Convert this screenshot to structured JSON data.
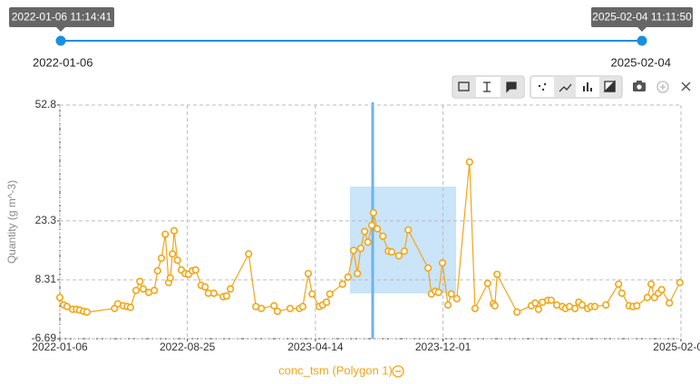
{
  "slider": {
    "start_label": "2022-01-06 11:14:41",
    "end_label": "2025-02-04 11:11:50",
    "start_date": "2022-01-06",
    "end_date": "2025-02-04"
  },
  "chart_data": {
    "type": "line",
    "y_label": "Quantity (g m^-3)",
    "x": [
      "2022-01-06",
      "2022-01-13",
      "2022-01-19",
      "2022-01-29",
      "2022-02-05",
      "2022-02-11",
      "2022-02-18",
      "2022-02-24",
      "2022-04-15",
      "2022-04-21",
      "2022-05-01",
      "2022-05-08",
      "2022-05-14",
      "2022-05-24",
      "2022-05-31",
      "2022-06-06",
      "2022-06-16",
      "2022-06-26",
      "2022-07-02",
      "2022-07-09",
      "2022-07-16",
      "2022-07-22",
      "2022-07-25",
      "2022-07-29",
      "2022-08-01",
      "2022-08-07",
      "2022-08-14",
      "2022-08-21",
      "2022-08-27",
      "2022-09-03",
      "2022-09-09",
      "2022-09-19",
      "2022-09-26",
      "2022-10-02",
      "2022-10-12",
      "2022-10-29",
      "2022-11-04",
      "2022-11-11",
      "2022-12-14",
      "2022-12-27",
      "2023-01-06",
      "2023-01-29",
      "2023-02-04",
      "2023-02-27",
      "2023-03-16",
      "2023-03-22",
      "2023-04-01",
      "2023-04-08",
      "2023-04-21",
      "2023-04-27",
      "2023-05-04",
      "2023-05-10",
      "2023-06-02",
      "2023-06-12",
      "2023-06-22",
      "2023-06-29",
      "2023-07-05",
      "2023-07-12",
      "2023-07-18",
      "2023-07-25",
      "2023-07-28",
      "2023-08-04",
      "2023-08-14",
      "2023-08-24",
      "2023-08-30",
      "2023-09-12",
      "2023-09-22",
      "2023-09-29",
      "2023-11-04",
      "2023-11-10",
      "2023-11-17",
      "2023-11-23",
      "2023-11-30",
      "2023-12-10",
      "2023-12-16",
      "2023-12-26",
      "2024-01-18",
      "2024-01-28",
      "2024-02-20",
      "2024-03-01",
      "2024-03-04",
      "2024-03-08",
      "2024-04-13",
      "2024-05-09",
      "2024-05-16",
      "2024-05-22",
      "2024-05-29",
      "2024-06-08",
      "2024-06-14",
      "2024-06-24",
      "2024-07-04",
      "2024-07-10",
      "2024-07-17",
      "2024-07-27",
      "2024-08-03",
      "2024-08-09",
      "2024-08-19",
      "2024-08-25",
      "2024-09-01",
      "2024-09-21",
      "2024-10-14",
      "2024-10-20",
      "2024-11-02",
      "2024-11-09",
      "2024-11-16",
      "2024-12-05",
      "2024-12-12",
      "2024-12-18",
      "2024-12-25",
      "2024-12-31",
      "2025-01-14",
      "2025-02-02"
    ],
    "series": [
      {
        "name": "conc_tsm (Polygon 1)",
        "color": "#f2a516",
        "values": [
          3.8,
          1.9,
          1.5,
          0.8,
          0.8,
          0.6,
          0.3,
          0.1,
          1.0,
          2.2,
          1.7,
          1.5,
          1.3,
          5.6,
          7.9,
          6.0,
          5.1,
          5.6,
          10.6,
          13.8,
          19.9,
          7.6,
          8.8,
          14.9,
          20.8,
          13.3,
          10.8,
          9.9,
          9.7,
          10.6,
          10.8,
          6.9,
          6.5,
          4.9,
          4.9,
          4.0,
          4.2,
          6.0,
          14.9,
          1.5,
          1.0,
          1.7,
          0.3,
          1.0,
          1.0,
          1.5,
          9.9,
          4.7,
          1.5,
          1.9,
          2.6,
          4.7,
          7.2,
          9.0,
          15.8,
          9.9,
          16.3,
          20.6,
          17.9,
          22.2,
          25.4,
          21.3,
          19.4,
          15.6,
          15.4,
          14.4,
          15.6,
          21.0,
          11.3,
          4.7,
          5.4,
          5.1,
          12.6,
          1.9,
          4.7,
          3.5,
          38.3,
          1.0,
          7.4,
          2.2,
          1.7,
          9.7,
          0.1,
          1.7,
          2.4,
          0.8,
          2.6,
          3.1,
          3.1,
          1.9,
          1.5,
          1.0,
          1.5,
          1.0,
          2.6,
          1.9,
          1.0,
          1.5,
          1.5,
          1.9,
          7.2,
          4.9,
          1.7,
          1.5,
          1.7,
          3.8,
          7.2,
          3.8,
          4.9,
          5.8,
          2.4,
          7.6
        ]
      }
    ],
    "xlim": [
      "2022-01-06",
      "2025-02-04"
    ],
    "xticks": [
      "2022-01-06",
      "2022-08-25",
      "2023-04-14",
      "2023-12-01",
      "2025-02-04"
    ],
    "ylim": [
      -6.69,
      52.8
    ],
    "yticks": [
      -6.69,
      8.31,
      23.3,
      52.8
    ],
    "grid": true
  }
}
